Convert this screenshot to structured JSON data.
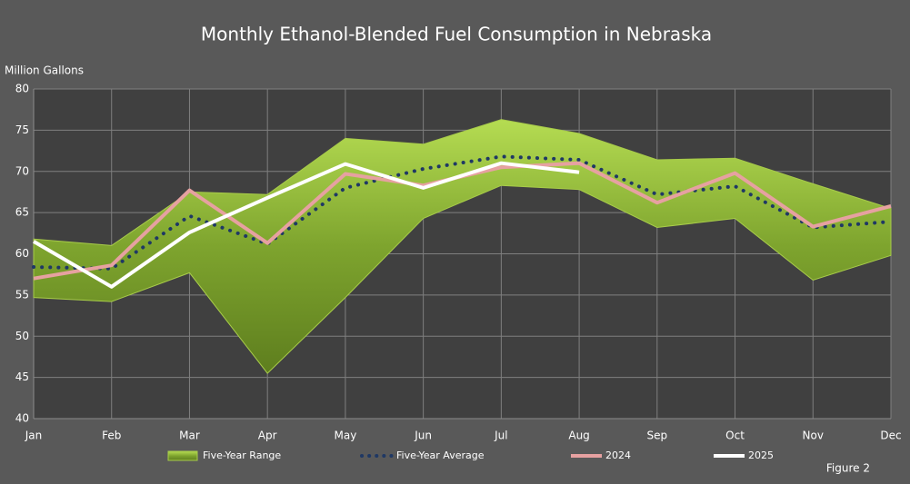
{
  "chart_data": {
    "type": "line",
    "title": "Monthly Ethanol-Blended Fuel Consumption in Nebraska",
    "y_label": "Million Gallons",
    "annotation": "Figure 2",
    "categories": [
      "Jan",
      "Feb",
      "Mar",
      "Apr",
      "May",
      "Jun",
      "Jul",
      "Aug",
      "Sep",
      "Oct",
      "Nov",
      "Dec"
    ],
    "ylim": [
      40,
      80
    ],
    "yticks": [
      40,
      45,
      50,
      55,
      60,
      65,
      70,
      75,
      80
    ],
    "grid": true,
    "legend": "bottom",
    "series": [
      {
        "name": "Five-Year Range",
        "color": "#8db33a",
        "kind": "range",
        "values": [
          61.8,
          61,
          67.5,
          67.2,
          74,
          73.3,
          76.3,
          74.6,
          71.4,
          71.6,
          68.5,
          65.5
        ],
        "lower": [
          54.7,
          54.2,
          57.7,
          45.5,
          54.7,
          64.3,
          68.3,
          67.8,
          63.2,
          64.3,
          56.8,
          59.8
        ]
      },
      {
        "name": "Five-Year Average",
        "color": "#1f3864",
        "kind": "dotted",
        "values": [
          58.4,
          58.2,
          64.6,
          61.2,
          68,
          70.3,
          71.8,
          71.4,
          67.2,
          68.2,
          63.2,
          63.9
        ]
      },
      {
        "name": "2024",
        "color": "#e6a1a1",
        "kind": "solid",
        "values": [
          57,
          58.6,
          67.7,
          61.3,
          69.7,
          68.3,
          70.5,
          71,
          66.2,
          69.8,
          63.3,
          65.8
        ]
      },
      {
        "name": "2025",
        "color": "#ffffff",
        "kind": "solid",
        "values": [
          61.5,
          56,
          62.6,
          66.8,
          70.9,
          68,
          71,
          69.9,
          null,
          null,
          null,
          null
        ]
      }
    ]
  }
}
